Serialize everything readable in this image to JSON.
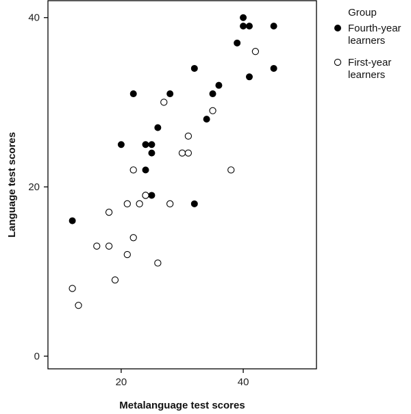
{
  "chart_data": {
    "type": "scatter",
    "title": "",
    "xlabel": "Metalanguage test scores",
    "ylabel": "Language test scores",
    "xlim": [
      8,
      52
    ],
    "ylim": [
      -1.5,
      42
    ],
    "xticks": [
      20,
      40
    ],
    "yticks": [
      0,
      20,
      40
    ],
    "grid": false,
    "legend": {
      "title": "Group",
      "placement": "outside-top-right"
    },
    "series": [
      {
        "name": "Fourth-year learners",
        "marker": "filled-circle",
        "color": "#000000",
        "points": [
          [
            12,
            16
          ],
          [
            20,
            25
          ],
          [
            22,
            31
          ],
          [
            24,
            25
          ],
          [
            24,
            22
          ],
          [
            25,
            25
          ],
          [
            25,
            24
          ],
          [
            25,
            19
          ],
          [
            26,
            27
          ],
          [
            28,
            31
          ],
          [
            32,
            34
          ],
          [
            32,
            18
          ],
          [
            34,
            28
          ],
          [
            35,
            31
          ],
          [
            36,
            32
          ],
          [
            39,
            37
          ],
          [
            40,
            40
          ],
          [
            40,
            39
          ],
          [
            41,
            39
          ],
          [
            41,
            33
          ],
          [
            45,
            39
          ],
          [
            45,
            34
          ]
        ]
      },
      {
        "name": "First-year learners",
        "marker": "open-circle",
        "color": "#000000",
        "points": [
          [
            12,
            8
          ],
          [
            13,
            6
          ],
          [
            16,
            13
          ],
          [
            18,
            17
          ],
          [
            18,
            13
          ],
          [
            19,
            9
          ],
          [
            21,
            18
          ],
          [
            21,
            12
          ],
          [
            22,
            22
          ],
          [
            22,
            14
          ],
          [
            23,
            18
          ],
          [
            24,
            19
          ],
          [
            24,
            19
          ],
          [
            26,
            11
          ],
          [
            27,
            30
          ],
          [
            28,
            18
          ],
          [
            30,
            24
          ],
          [
            31,
            24
          ],
          [
            31,
            26
          ],
          [
            35,
            29
          ],
          [
            38,
            22
          ],
          [
            42,
            36
          ]
        ]
      }
    ]
  }
}
